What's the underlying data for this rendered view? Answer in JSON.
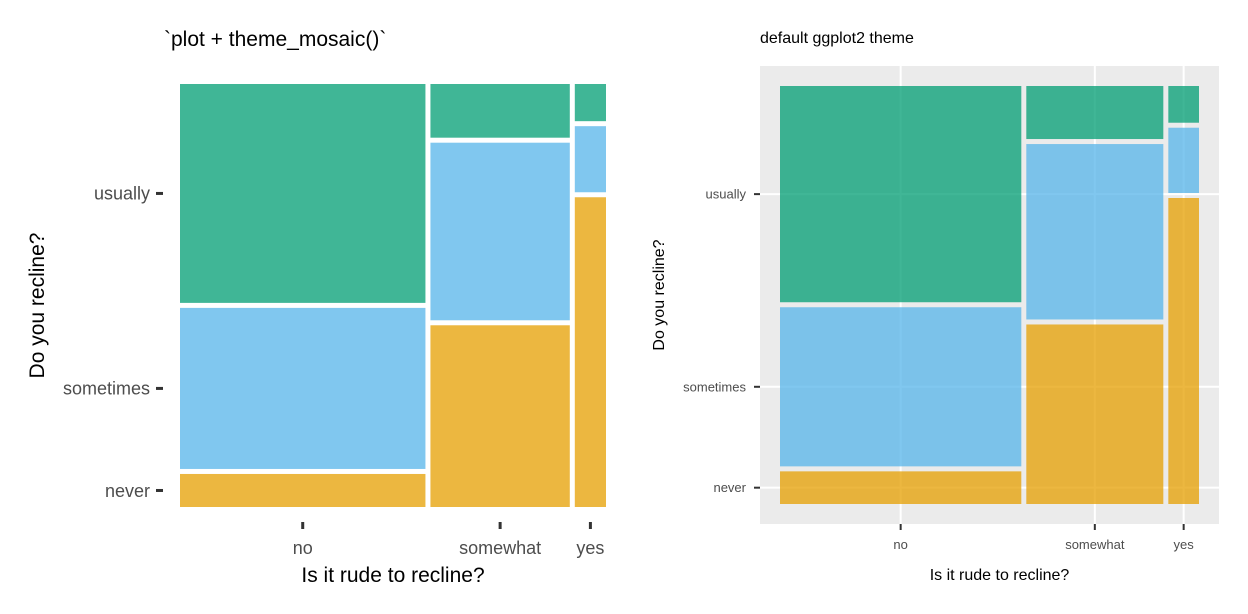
{
  "chart_data": [
    {
      "type": "mosaic",
      "title": "`plot + theme_mosaic()`",
      "xlabel": "Is it rude to recline?",
      "ylabel": "Do you recline?",
      "x_categories": [
        "no",
        "somewhat",
        "yes"
      ],
      "y_categories": [
        "never",
        "sometimes",
        "usually"
      ],
      "column_widths": [
        0.59,
        0.335,
        0.075
      ],
      "stacks": [
        {
          "x": "no",
          "never": 0.08,
          "sometimes": 0.39,
          "usually": 0.53
        },
        {
          "x": "somewhat",
          "never": 0.44,
          "sometimes": 0.43,
          "usually": 0.13
        },
        {
          "x": "yes",
          "never": 0.75,
          "sometimes": 0.16,
          "usually": 0.09
        }
      ],
      "colors": {
        "never": "#E69F00",
        "sometimes": "#56B4E9",
        "usually": "#009E73"
      },
      "theme": "mosaic",
      "grid": false,
      "legend": "none"
    },
    {
      "type": "mosaic",
      "title": "default ggplot2 theme",
      "xlabel": "Is it rude to recline?",
      "ylabel": "Do you recline?",
      "x_categories": [
        "no",
        "somewhat",
        "yes"
      ],
      "y_categories": [
        "never",
        "sometimes",
        "usually"
      ],
      "column_widths": [
        0.59,
        0.335,
        0.075
      ],
      "stacks": [
        {
          "x": "no",
          "never": 0.08,
          "sometimes": 0.39,
          "usually": 0.53
        },
        {
          "x": "somewhat",
          "never": 0.44,
          "sometimes": 0.43,
          "usually": 0.13
        },
        {
          "x": "yes",
          "never": 0.75,
          "sometimes": 0.16,
          "usually": 0.09
        }
      ],
      "colors": {
        "never": "#E69F00",
        "sometimes": "#56B4E9",
        "usually": "#009E73"
      },
      "theme": "grey",
      "grid": true,
      "legend": "none"
    }
  ]
}
